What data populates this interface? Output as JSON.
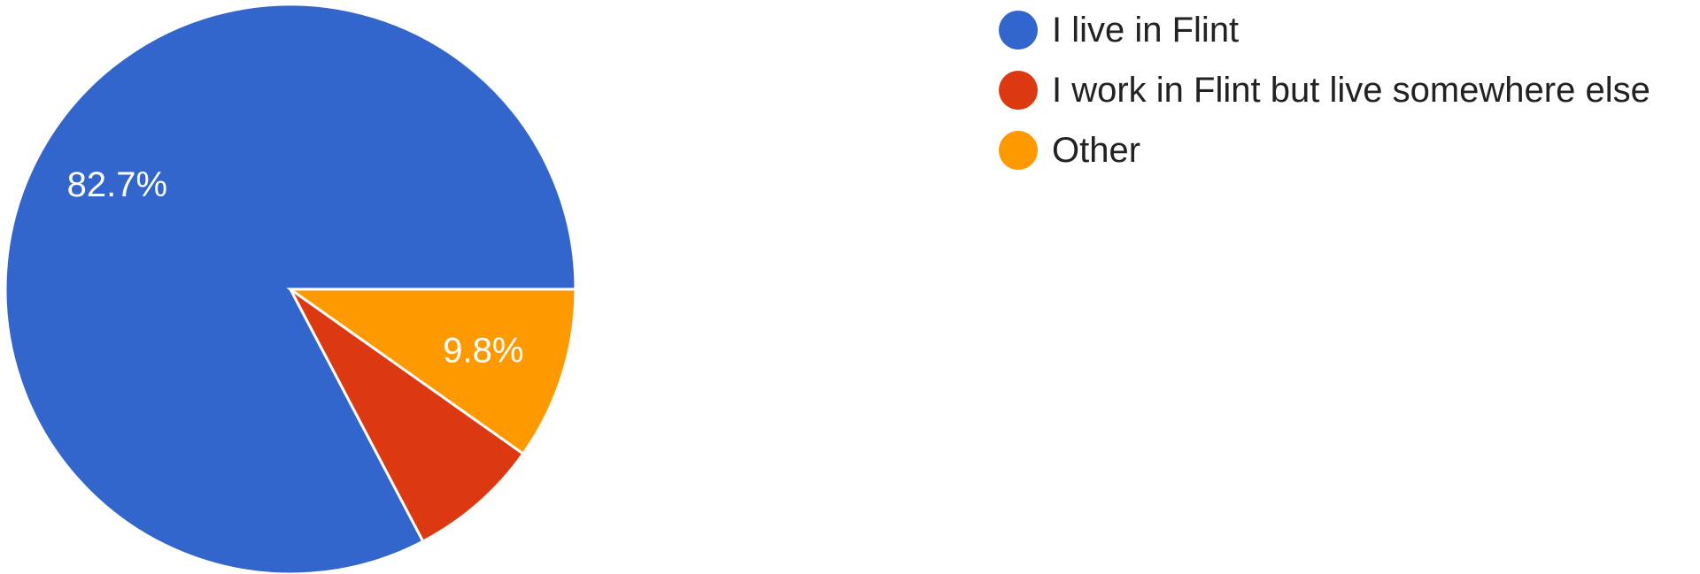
{
  "chart_data": {
    "type": "pie",
    "categories": [
      "I live in Flint",
      "I work in Flint but live somewhere else",
      "Other"
    ],
    "values": [
      82.7,
      7.5,
      9.8
    ],
    "value_labels": [
      "82.7%",
      "",
      "9.8%"
    ],
    "colors": [
      "#3366cc",
      "#dc3912",
      "#ff9900"
    ],
    "legend_position": "top-right",
    "title": ""
  },
  "legend": {
    "items": [
      {
        "label": "I live in Flint",
        "color": "#3366cc"
      },
      {
        "label": "I work in Flint but live somewhere else",
        "color": "#dc3912"
      },
      {
        "label": "Other",
        "color": "#ff9900"
      }
    ]
  }
}
